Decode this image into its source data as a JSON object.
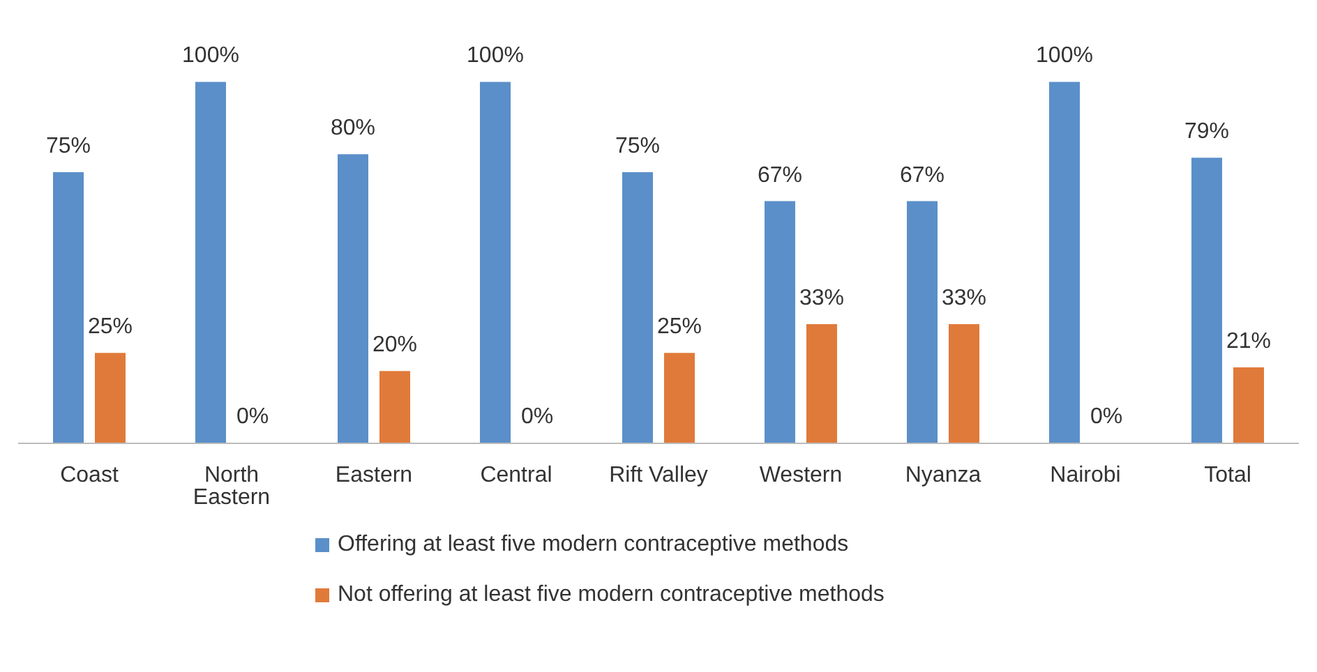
{
  "chart_data": {
    "type": "bar",
    "categories": [
      "Coast",
      "North Eastern",
      "Eastern",
      "Central",
      "Rift Valley",
      "Western",
      "Nyanza",
      "Nairobi",
      "Total"
    ],
    "series": [
      {
        "name": "Offering at least five modern contraceptive methods",
        "color": "#5b8fc9",
        "values": [
          75,
          100,
          80,
          100,
          75,
          67,
          67,
          100,
          79
        ],
        "value_labels": [
          "75%",
          "100%",
          "80%",
          "100%",
          "75%",
          "67%",
          "67%",
          "100%",
          "79%"
        ]
      },
      {
        "name": "Not offering at least five modern contraceptive methods",
        "color": "#e07a3a",
        "values": [
          25,
          0,
          20,
          0,
          25,
          33,
          33,
          0,
          21
        ],
        "value_labels": [
          "25%",
          "0%",
          "20%",
          "0%",
          "25%",
          "33%",
          "33%",
          "0%",
          "21%"
        ]
      }
    ],
    "legend": "bottom",
    "grid": false
  }
}
